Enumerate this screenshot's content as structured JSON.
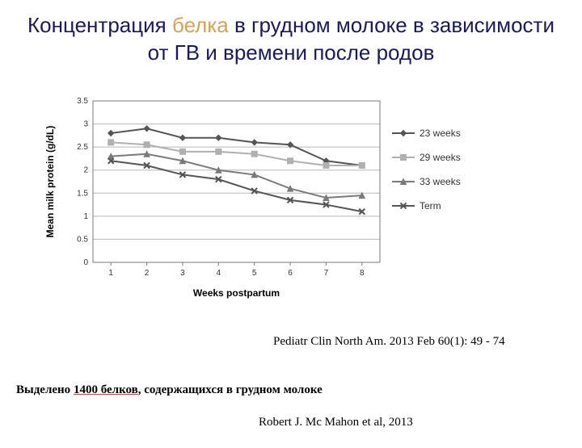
{
  "title": {
    "part1": "Концентрация ",
    "highlight": "белка",
    "part2": " в грудном молоке в зависимости от ГВ и  времени после родов"
  },
  "chart": {
    "type": "line",
    "ylabel": "Mean milk protein (g/dL)",
    "xlabel": "Weeks postpartum",
    "label_fontsize": 12,
    "label_fontweight": "bold",
    "x_categories": [
      "1",
      "2",
      "3",
      "4",
      "5",
      "6",
      "7",
      "8"
    ],
    "ylim": [
      0,
      3.5
    ],
    "ytick_step": 0.5,
    "yticks": [
      "0",
      "0.5",
      "1",
      "1.5",
      "2",
      "2.5",
      "3",
      "3.5"
    ],
    "tick_fontsize": 10,
    "background_color": "#ffffff",
    "plot_border_color": "#7a7a7a",
    "grid_color": "#b8b8b8",
    "line_width": 2,
    "marker_size": 7,
    "series": [
      {
        "name": "23 weeks",
        "color": "#555555",
        "marker": "diamond",
        "values": [
          2.8,
          2.9,
          2.7,
          2.7,
          2.6,
          2.55,
          2.2,
          2.1
        ]
      },
      {
        "name": "29 weeks",
        "color": "#b0b0b0",
        "marker": "square",
        "values": [
          2.6,
          2.55,
          2.4,
          2.4,
          2.35,
          2.2,
          2.1,
          2.1
        ]
      },
      {
        "name": "33 weeks",
        "color": "#7a7a7a",
        "marker": "triangle",
        "values": [
          2.3,
          2.35,
          2.2,
          2.0,
          1.9,
          1.6,
          1.4,
          1.45
        ]
      },
      {
        "name": "Term",
        "color": "#555555",
        "marker": "x",
        "values": [
          2.2,
          2.1,
          1.9,
          1.8,
          1.55,
          1.35,
          1.25,
          1.1
        ]
      }
    ],
    "legend_fontsize": 12
  },
  "citation": "Pediatr Clin North Am. 2013 Feb 60(1): 49 - 74",
  "note": {
    "t1": "Выделено ",
    "t2": "1400 белков",
    "t3": ", содержащихся в грудном молоке"
  },
  "citation2": "Robert J. Mc Mahon et al, 2013"
}
